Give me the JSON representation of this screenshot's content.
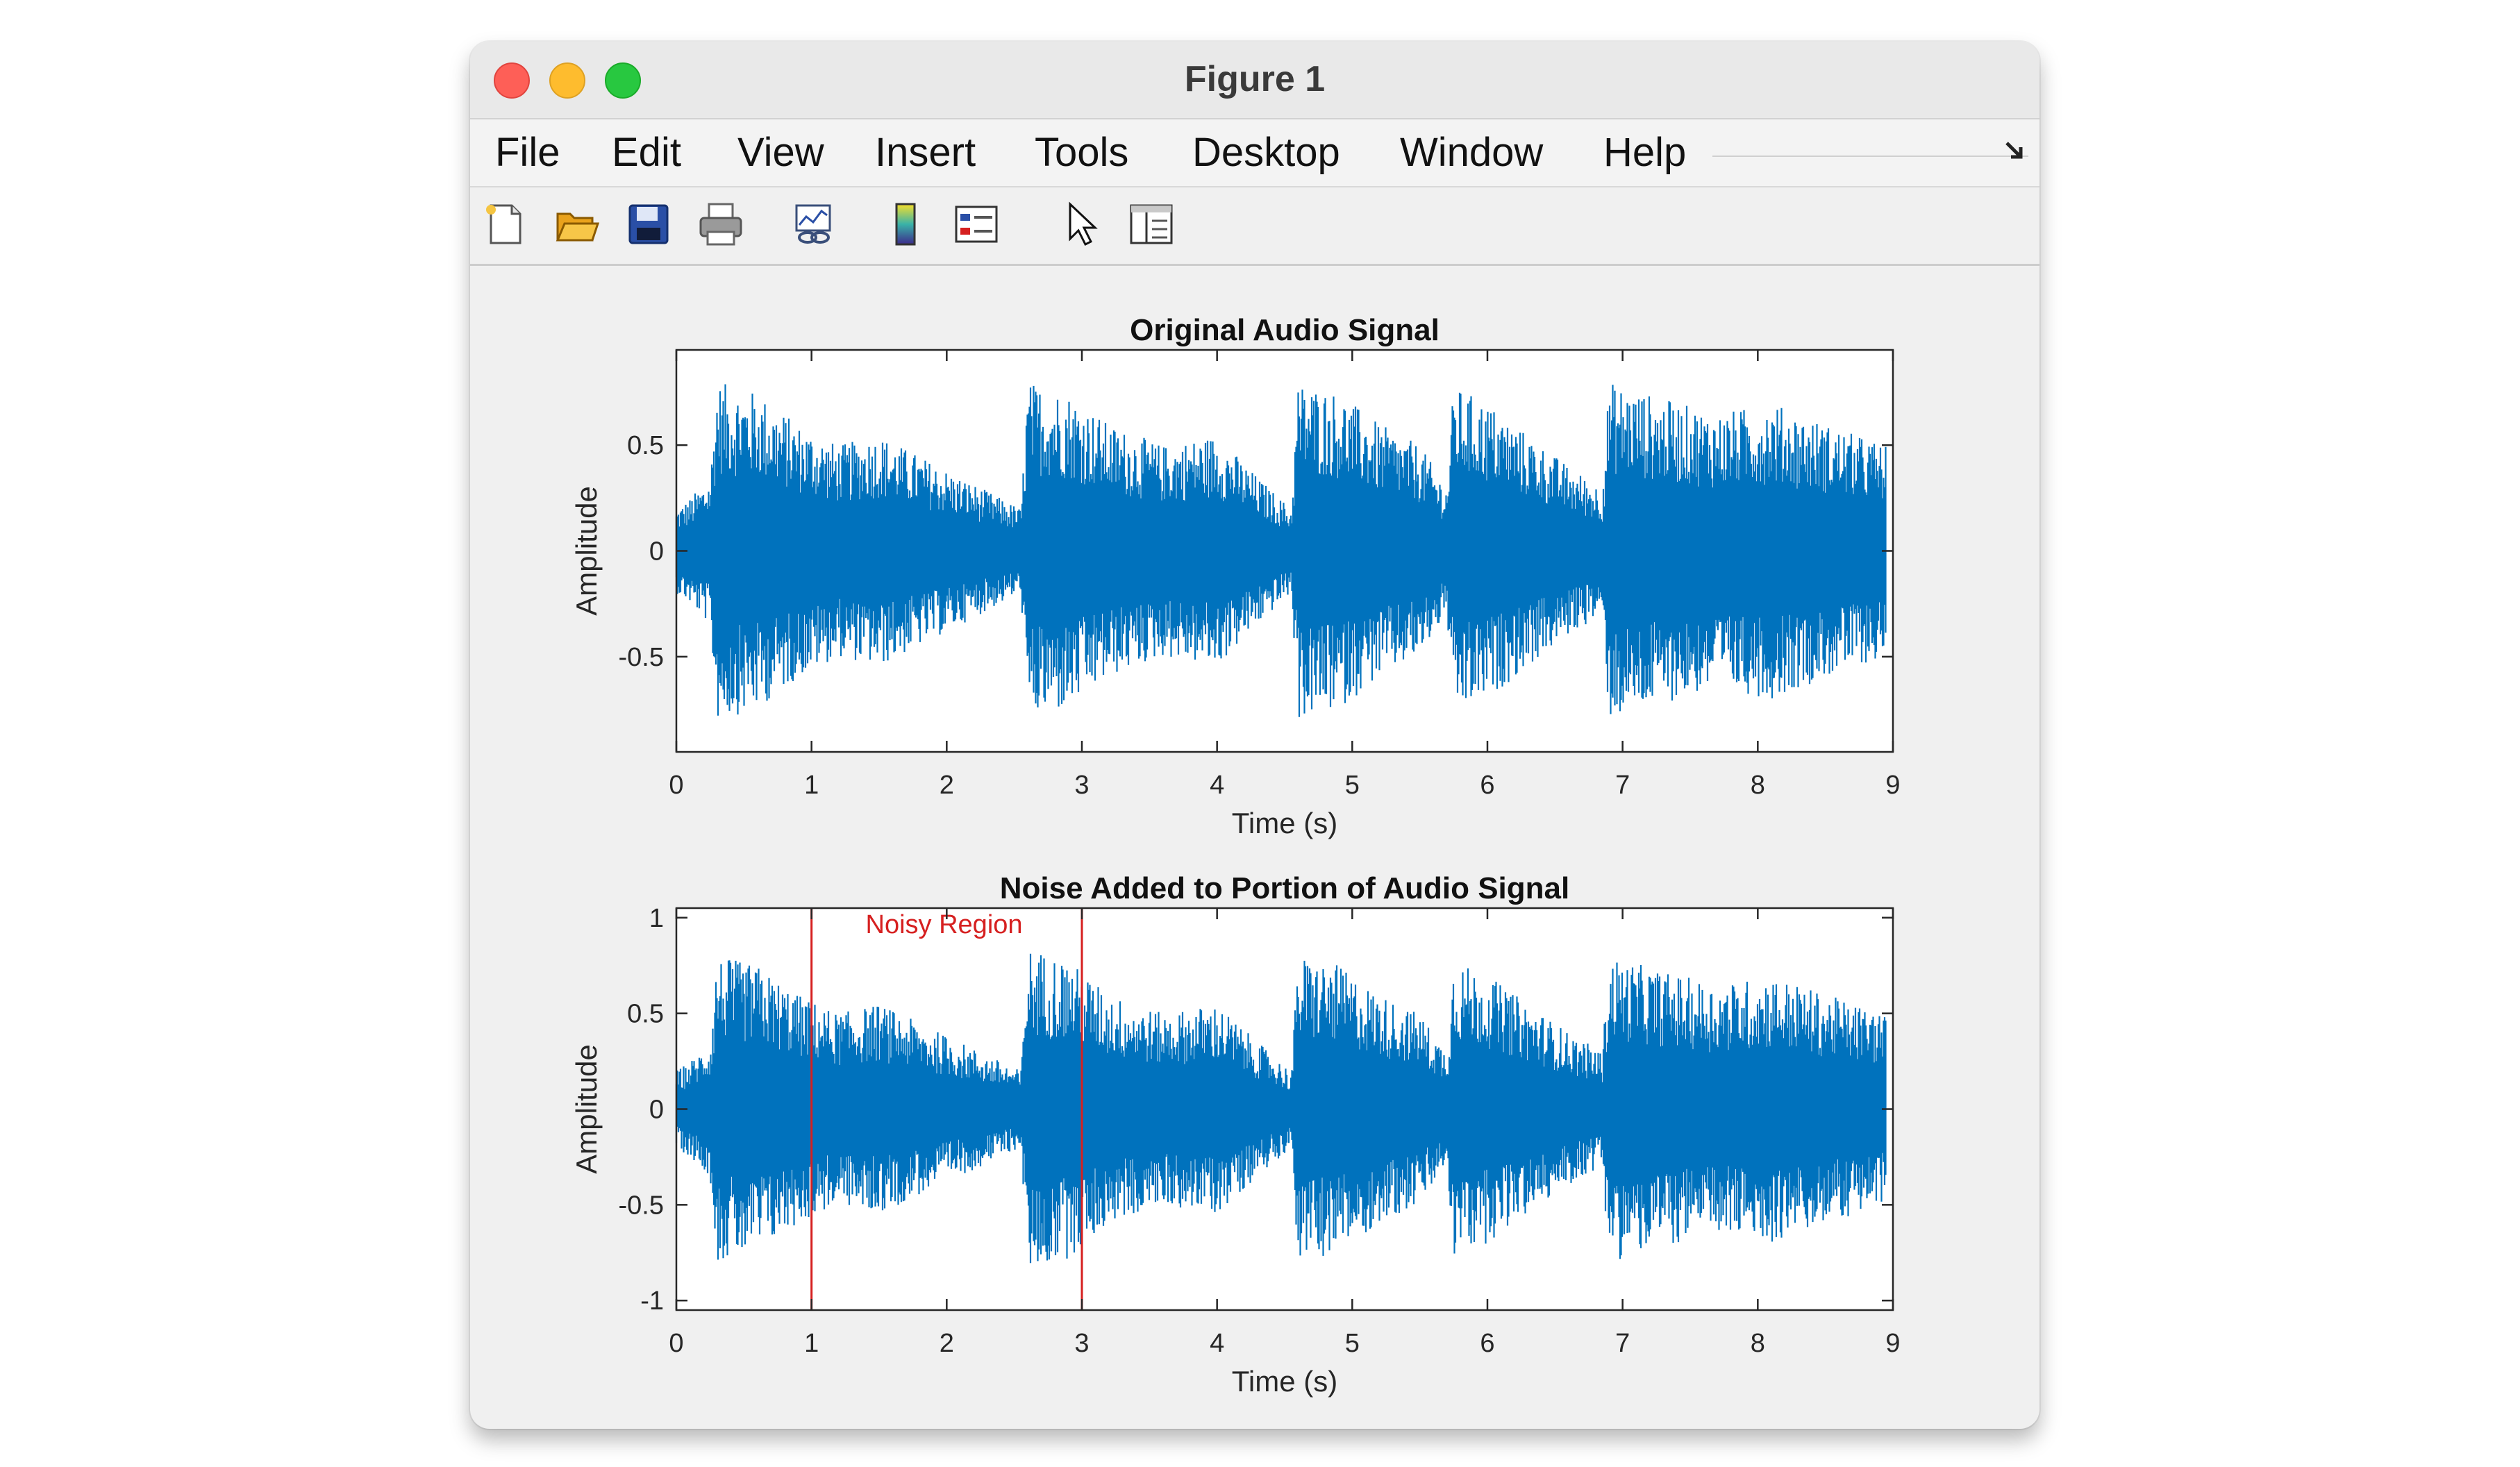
{
  "window": {
    "title": "Figure 1"
  },
  "menu": [
    "File",
    "Edit",
    "View",
    "Insert",
    "Tools",
    "Desktop",
    "Window",
    "Help"
  ],
  "toolbar": [
    "new-figure-icon",
    "open-folder-icon",
    "save-icon",
    "print-icon",
    "link-figure-icon",
    "colorbar-icon",
    "legend-icon",
    "pointer-icon",
    "property-inspector-icon"
  ],
  "colors": {
    "signal": "#0072bd",
    "marker": "#d62020",
    "axes_bg": "#ffffff",
    "figure_bg": "#f0f0f0"
  },
  "chart_data": [
    {
      "type": "line",
      "title": "Original Audio Signal",
      "xlabel": "Time (s)",
      "ylabel": "Amplitude",
      "xlim": [
        0,
        9
      ],
      "ylim": [
        -0.95,
        0.95
      ],
      "xticks": [
        "0",
        "1",
        "2",
        "3",
        "4",
        "5",
        "6",
        "7",
        "8",
        "9"
      ],
      "yticks": [
        "-0.5",
        "0",
        "0.5"
      ],
      "series": [
        {
          "envelope_time": [
            0,
            0.1,
            0.25,
            0.3,
            0.6,
            0.9,
            1.2,
            1.5,
            1.8,
            2.1,
            2.4,
            2.55,
            2.6,
            2.9,
            3.2,
            3.6,
            4.0,
            4.3,
            4.55,
            4.6,
            4.9,
            5.2,
            5.5,
            5.7,
            5.75,
            6.0,
            6.3,
            6.6,
            6.85,
            6.9,
            7.3,
            7.7,
            8.1,
            8.5,
            8.95
          ],
          "envelope_amp": [
            0.2,
            0.25,
            0.35,
            0.8,
            0.75,
            0.6,
            0.5,
            0.55,
            0.45,
            0.35,
            0.25,
            0.2,
            0.8,
            0.75,
            0.6,
            0.5,
            0.55,
            0.35,
            0.2,
            0.8,
            0.75,
            0.6,
            0.5,
            0.3,
            0.78,
            0.7,
            0.55,
            0.4,
            0.3,
            0.8,
            0.72,
            0.65,
            0.7,
            0.6,
            0.5
          ]
        }
      ]
    },
    {
      "type": "line",
      "title": "Noise Added to Portion of Audio Signal",
      "xlabel": "Time (s)",
      "ylabel": "Amplitude",
      "xlim": [
        0,
        9
      ],
      "ylim": [
        -1.05,
        1.05
      ],
      "xticks": [
        "0",
        "1",
        "2",
        "3",
        "4",
        "5",
        "6",
        "7",
        "8",
        "9"
      ],
      "yticks": [
        "-1",
        "-0.5",
        "0",
        "0.5",
        "1"
      ],
      "annotation": {
        "text": "Noisy Region",
        "x": 1.4,
        "y": 0.92
      },
      "noisy_region": [
        1,
        3
      ],
      "series": [
        {
          "envelope_time": [
            0,
            0.1,
            0.25,
            0.3,
            0.6,
            0.9,
            1.2,
            1.5,
            1.8,
            2.1,
            2.4,
            2.55,
            2.6,
            2.9,
            3.2,
            3.6,
            4.0,
            4.3,
            4.55,
            4.6,
            4.9,
            5.2,
            5.5,
            5.7,
            5.75,
            6.0,
            6.3,
            6.6,
            6.85,
            6.9,
            7.3,
            7.7,
            8.1,
            8.5,
            8.95
          ],
          "envelope_amp": [
            0.2,
            0.25,
            0.35,
            0.8,
            0.75,
            0.6,
            0.5,
            0.55,
            0.45,
            0.35,
            0.25,
            0.2,
            0.85,
            0.78,
            0.6,
            0.5,
            0.55,
            0.35,
            0.2,
            0.8,
            0.75,
            0.6,
            0.5,
            0.3,
            0.78,
            0.7,
            0.55,
            0.4,
            0.3,
            0.8,
            0.72,
            0.65,
            0.7,
            0.6,
            0.5
          ]
        }
      ]
    }
  ]
}
